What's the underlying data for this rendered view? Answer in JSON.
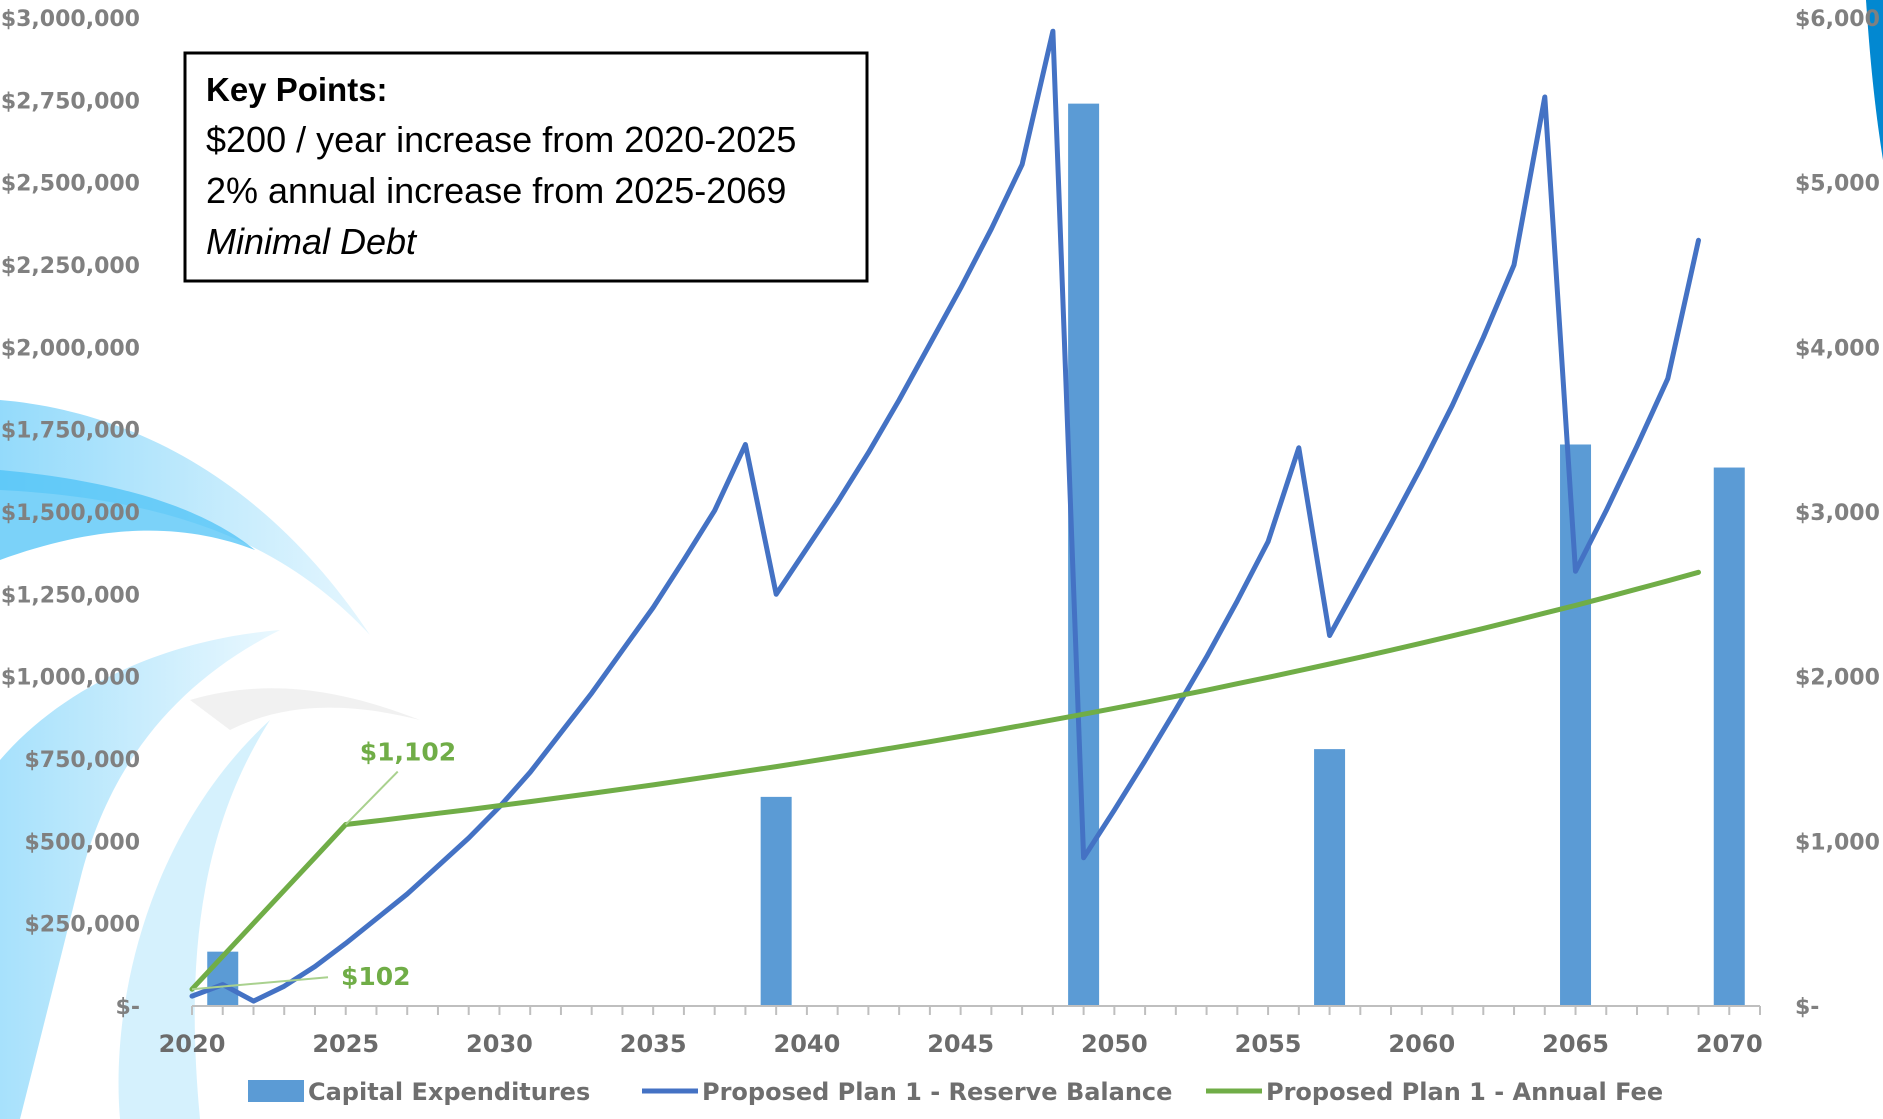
{
  "chart_data": {
    "type": "bar+line",
    "title": "",
    "key_points": {
      "title": "Key Points:",
      "lines": [
        "$200 / year increase from 2020-2025",
        "2% annual increase from 2025-2069"
      ],
      "italic_line": "Minimal Debt"
    },
    "left_axis": {
      "min": 0,
      "max": 3000000,
      "ticks": [
        {
          "value": 0,
          "label": "$-"
        },
        {
          "value": 250000,
          "label": "$250,000"
        },
        {
          "value": 500000,
          "label": "$500,000"
        },
        {
          "value": 750000,
          "label": "$750,000"
        },
        {
          "value": 1000000,
          "label": "$1,000,000"
        },
        {
          "value": 1250000,
          "label": "$1,250,000"
        },
        {
          "value": 1500000,
          "label": "$1,500,000"
        },
        {
          "value": 1750000,
          "label": "$1,750,000"
        },
        {
          "value": 2000000,
          "label": "$2,000,000"
        },
        {
          "value": 2250000,
          "label": "$2,250,000"
        },
        {
          "value": 2500000,
          "label": "$2,500,000"
        },
        {
          "value": 2750000,
          "label": "$2,750,000"
        },
        {
          "value": 3000000,
          "label": "$3,000,000"
        }
      ]
    },
    "right_axis": {
      "min": 0,
      "max": 6000,
      "ticks": [
        {
          "value": 0,
          "label": "$-"
        },
        {
          "value": 1000,
          "label": "$1,000"
        },
        {
          "value": 2000,
          "label": "$2,000"
        },
        {
          "value": 3000,
          "label": "$3,000"
        },
        {
          "value": 4000,
          "label": "$4,000"
        },
        {
          "value": 5000,
          "label": "$5,000"
        },
        {
          "value": 6000,
          "label": "$6,000"
        }
      ]
    },
    "x_axis": {
      "min": 2020,
      "max": 2071,
      "tick_labels": [
        2020,
        2025,
        2030,
        2035,
        2040,
        2045,
        2050,
        2055,
        2060,
        2065,
        2070
      ]
    },
    "series": [
      {
        "name": "Capital Expenditures",
        "type": "bar",
        "axis": "left",
        "color": "#5b9bd5",
        "points": [
          {
            "x": 2021,
            "y": 165000
          },
          {
            "x": 2039,
            "y": 635000
          },
          {
            "x": 2049,
            "y": 2740000
          },
          {
            "x": 2057,
            "y": 780000
          },
          {
            "x": 2065,
            "y": 1705000
          },
          {
            "x": 2070,
            "y": 1635000
          }
        ]
      },
      {
        "name": "Proposed Plan 1 - Reserve Balance",
        "type": "line",
        "axis": "left",
        "color": "#4472c4",
        "points": [
          {
            "x": 2020,
            "y": 30000
          },
          {
            "x": 2021,
            "y": 65000
          },
          {
            "x": 2022,
            "y": 15000
          },
          {
            "x": 2023,
            "y": 60000
          },
          {
            "x": 2024,
            "y": 120000
          },
          {
            "x": 2025,
            "y": 190000
          },
          {
            "x": 2026,
            "y": 265000
          },
          {
            "x": 2027,
            "y": 340000
          },
          {
            "x": 2028,
            "y": 425000
          },
          {
            "x": 2029,
            "y": 510000
          },
          {
            "x": 2030,
            "y": 605000
          },
          {
            "x": 2031,
            "y": 710000
          },
          {
            "x": 2032,
            "y": 830000
          },
          {
            "x": 2033,
            "y": 950000
          },
          {
            "x": 2034,
            "y": 1080000
          },
          {
            "x": 2035,
            "y": 1210000
          },
          {
            "x": 2036,
            "y": 1355000
          },
          {
            "x": 2037,
            "y": 1505000
          },
          {
            "x": 2038,
            "y": 1705000
          },
          {
            "x": 2039,
            "y": 1250000
          },
          {
            "x": 2040,
            "y": 1390000
          },
          {
            "x": 2041,
            "y": 1530000
          },
          {
            "x": 2042,
            "y": 1680000
          },
          {
            "x": 2043,
            "y": 1840000
          },
          {
            "x": 2044,
            "y": 2010000
          },
          {
            "x": 2045,
            "y": 2180000
          },
          {
            "x": 2046,
            "y": 2360000
          },
          {
            "x": 2047,
            "y": 2555000
          },
          {
            "x": 2048,
            "y": 2960000
          },
          {
            "x": 2049,
            "y": 450000
          },
          {
            "x": 2050,
            "y": 595000
          },
          {
            "x": 2051,
            "y": 745000
          },
          {
            "x": 2052,
            "y": 900000
          },
          {
            "x": 2053,
            "y": 1060000
          },
          {
            "x": 2054,
            "y": 1230000
          },
          {
            "x": 2055,
            "y": 1410000
          },
          {
            "x": 2056,
            "y": 1695000
          },
          {
            "x": 2057,
            "y": 1125000
          },
          {
            "x": 2058,
            "y": 1295000
          },
          {
            "x": 2059,
            "y": 1465000
          },
          {
            "x": 2060,
            "y": 1640000
          },
          {
            "x": 2061,
            "y": 1825000
          },
          {
            "x": 2062,
            "y": 2030000
          },
          {
            "x": 2063,
            "y": 2250000
          },
          {
            "x": 2064,
            "y": 2760000
          },
          {
            "x": 2065,
            "y": 1320000
          },
          {
            "x": 2066,
            "y": 1505000
          },
          {
            "x": 2067,
            "y": 1700000
          },
          {
            "x": 2068,
            "y": 1905000
          },
          {
            "x": 2069,
            "y": 2325000
          }
        ]
      },
      {
        "name": "Proposed Plan 1 - Annual Fee",
        "type": "line",
        "axis": "right",
        "color": "#70ad47",
        "points": [
          {
            "x": 2020,
            "y": 102
          },
          {
            "x": 2021,
            "y": 302
          },
          {
            "x": 2022,
            "y": 502
          },
          {
            "x": 2023,
            "y": 702
          },
          {
            "x": 2024,
            "y": 902
          },
          {
            "x": 2025,
            "y": 1102
          },
          {
            "x": 2026,
            "y": 1124
          },
          {
            "x": 2027,
            "y": 1147
          },
          {
            "x": 2028,
            "y": 1170
          },
          {
            "x": 2029,
            "y": 1193
          },
          {
            "x": 2030,
            "y": 1217
          },
          {
            "x": 2031,
            "y": 1241
          },
          {
            "x": 2032,
            "y": 1266
          },
          {
            "x": 2033,
            "y": 1291
          },
          {
            "x": 2034,
            "y": 1317
          },
          {
            "x": 2035,
            "y": 1343
          },
          {
            "x": 2036,
            "y": 1370
          },
          {
            "x": 2037,
            "y": 1398
          },
          {
            "x": 2038,
            "y": 1426
          },
          {
            "x": 2039,
            "y": 1454
          },
          {
            "x": 2040,
            "y": 1483
          },
          {
            "x": 2041,
            "y": 1513
          },
          {
            "x": 2042,
            "y": 1543
          },
          {
            "x": 2043,
            "y": 1574
          },
          {
            "x": 2044,
            "y": 1605
          },
          {
            "x": 2045,
            "y": 1637
          },
          {
            "x": 2046,
            "y": 1670
          },
          {
            "x": 2047,
            "y": 1704
          },
          {
            "x": 2048,
            "y": 1738
          },
          {
            "x": 2049,
            "y": 1772
          },
          {
            "x": 2050,
            "y": 1808
          },
          {
            "x": 2051,
            "y": 1844
          },
          {
            "x": 2052,
            "y": 1881
          },
          {
            "x": 2053,
            "y": 1918
          },
          {
            "x": 2054,
            "y": 1957
          },
          {
            "x": 2055,
            "y": 1996
          },
          {
            "x": 2056,
            "y": 2036
          },
          {
            "x": 2057,
            "y": 2077
          },
          {
            "x": 2058,
            "y": 2118
          },
          {
            "x": 2059,
            "y": 2161
          },
          {
            "x": 2060,
            "y": 2204
          },
          {
            "x": 2061,
            "y": 2248
          },
          {
            "x": 2062,
            "y": 2293
          },
          {
            "x": 2063,
            "y": 2339
          },
          {
            "x": 2064,
            "y": 2386
          },
          {
            "x": 2065,
            "y": 2433
          },
          {
            "x": 2066,
            "y": 2482
          },
          {
            "x": 2067,
            "y": 2532
          },
          {
            "x": 2068,
            "y": 2582
          },
          {
            "x": 2069,
            "y": 2634
          }
        ]
      }
    ],
    "annotations": [
      {
        "text": "$1,102",
        "x": 2025,
        "y": 1102,
        "axis": "right",
        "color": "#70ad47"
      },
      {
        "text": "$102",
        "x": 2020,
        "y": 102,
        "axis": "right",
        "color": "#70ad47"
      }
    ],
    "legend": {
      "position": "bottom",
      "items": [
        {
          "label": "Capital Expenditures",
          "kind": "bar",
          "color": "#5b9bd5"
        },
        {
          "label": "Proposed Plan 1 - Reserve Balance",
          "kind": "line",
          "color": "#4472c4"
        },
        {
          "label": "Proposed Plan 1 - Annual Fee",
          "kind": "line",
          "color": "#70ad47"
        }
      ]
    },
    "grid": false
  }
}
